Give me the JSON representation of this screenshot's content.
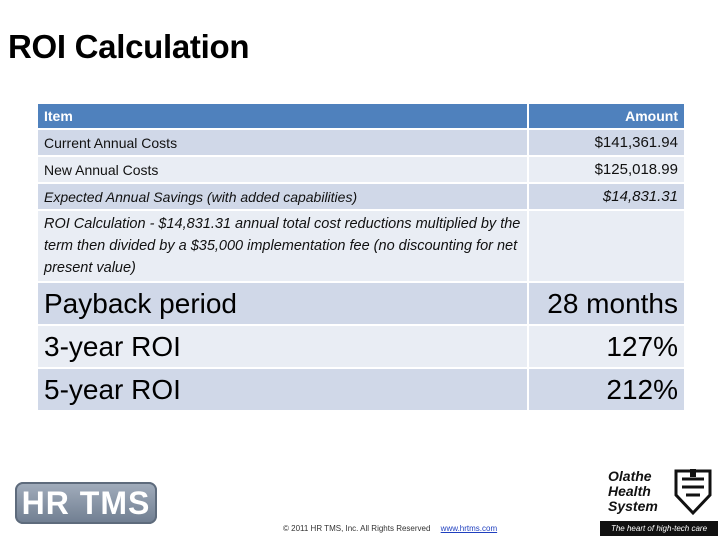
{
  "title": "ROI Calculation",
  "table": {
    "headers": {
      "item": "Item",
      "amount": "Amount"
    },
    "rows": [
      {
        "item": "Current Annual Costs",
        "amount": "$141,361.94"
      },
      {
        "item": "New Annual Costs",
        "amount": "$125,018.99"
      },
      {
        "item": "Expected Annual Savings (with added capabilities)",
        "amount": "$14,831.31"
      },
      {
        "item": "ROI Calculation - $14,831.31 annual total cost reductions multiplied by the term then divided by a $35,000 implementation fee (no discounting for net present value)",
        "amount": ""
      },
      {
        "item": "Payback period",
        "amount": "28 months"
      },
      {
        "item": "3-year ROI",
        "amount": "127%"
      },
      {
        "item": "5-year ROI",
        "amount": "212%"
      }
    ]
  },
  "footer": {
    "copyright": "© 2011 HR TMS, Inc.  All Rights Reserved",
    "link": "www.hrtms.com"
  },
  "logos": {
    "hr_tms": "HR TMS",
    "olathe_name": [
      "Olathe",
      "Health",
      "System"
    ],
    "olathe_tagline": "The heart of high-tech care"
  },
  "colors": {
    "header": "#4f81bd",
    "row_dark": "#d0d8e8",
    "row_light": "#e9edf4"
  }
}
